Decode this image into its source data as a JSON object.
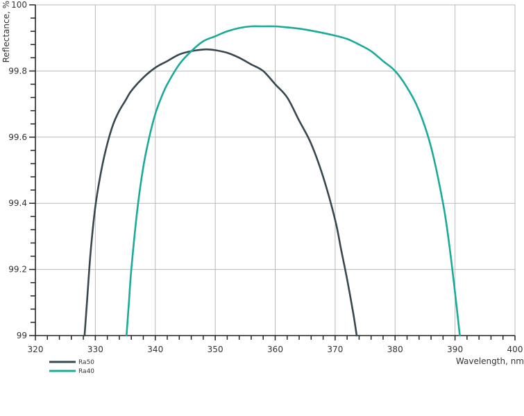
{
  "chart_data": {
    "type": "line",
    "title": "",
    "xlabel": "Wavelength, nm",
    "ylabel": "Reflectance, %",
    "xlim": [
      320,
      400
    ],
    "ylim": [
      99,
      100
    ],
    "x_ticks": [
      "320",
      "330",
      "340",
      "350",
      "360",
      "370",
      "380",
      "390",
      "400"
    ],
    "y_ticks": [
      "99",
      "99.2",
      "99.4",
      "99.6",
      "99.8",
      "100"
    ],
    "grid": true,
    "legend_position": "bottom-left",
    "series": [
      {
        "name": "Ra50",
        "color": "#36474f",
        "x": [
          328.2,
          328.6,
          329.2,
          330,
          331,
          332,
          333,
          334,
          335,
          336,
          338,
          340,
          342,
          344,
          346,
          348,
          349,
          350,
          352,
          354,
          356,
          358,
          360,
          362,
          364,
          366,
          368,
          370,
          371,
          372,
          373,
          373.6
        ],
        "y": [
          99.0,
          99.1,
          99.25,
          99.39,
          99.5,
          99.58,
          99.64,
          99.68,
          99.71,
          99.74,
          99.78,
          99.81,
          99.83,
          99.85,
          99.86,
          99.865,
          99.865,
          99.863,
          99.855,
          99.84,
          99.82,
          99.8,
          99.76,
          99.72,
          99.65,
          99.58,
          99.48,
          99.35,
          99.26,
          99.17,
          99.07,
          99.0
        ]
      },
      {
        "name": "Ra40",
        "color": "#1aaa9a",
        "x": [
          335.2,
          335.6,
          336,
          337,
          338,
          339,
          340,
          341,
          342,
          344,
          346,
          348,
          350,
          352,
          354,
          356,
          358,
          360,
          362,
          364,
          366,
          368,
          370,
          372,
          374,
          376,
          378,
          380,
          382,
          384,
          386,
          388,
          389,
          390,
          390.8
        ],
        "y": [
          99.0,
          99.1,
          99.2,
          99.38,
          99.51,
          99.6,
          99.67,
          99.72,
          99.76,
          99.82,
          99.86,
          99.89,
          99.905,
          99.92,
          99.93,
          99.935,
          99.935,
          99.935,
          99.932,
          99.928,
          99.922,
          99.915,
          99.907,
          99.897,
          99.88,
          99.86,
          99.83,
          99.8,
          99.75,
          99.68,
          99.57,
          99.4,
          99.28,
          99.13,
          99.0
        ]
      }
    ]
  }
}
